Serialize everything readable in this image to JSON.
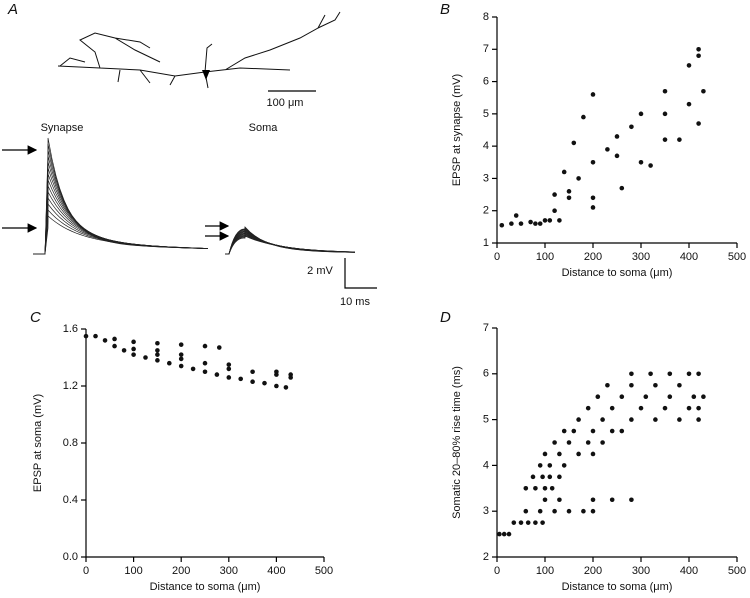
{
  "panel_a": {
    "label": "A",
    "scale_length": "100 μm",
    "synapse": "Synapse",
    "soma": "Soma",
    "v_scale": "2 mV",
    "t_scale": "10 ms"
  },
  "chart_data": [
    {
      "type": "scatter",
      "label": "B",
      "xlabel": "Distance to soma (μm)",
      "ylabel": "EPSP at synapse (mV)",
      "xlim": [
        0,
        500
      ],
      "xticks": [
        0,
        100,
        200,
        300,
        400,
        500
      ],
      "ylim": [
        1,
        8
      ],
      "yticks": [
        1,
        2,
        3,
        4,
        5,
        6,
        7,
        8
      ],
      "color": "#111111",
      "x": [
        10,
        30,
        50,
        70,
        90,
        100,
        120,
        140,
        160,
        180,
        200,
        120,
        150,
        200,
        250,
        300,
        350,
        400,
        420,
        110,
        200,
        300,
        350,
        400,
        430,
        130,
        200,
        260,
        320,
        380,
        420,
        150,
        250,
        350,
        420,
        40,
        80,
        170,
        230,
        280
      ],
      "values": [
        1.55,
        1.6,
        1.6,
        1.65,
        1.6,
        1.7,
        2.5,
        3.2,
        4.1,
        4.9,
        5.6,
        2.0,
        2.6,
        3.5,
        4.3,
        5.0,
        5.7,
        6.5,
        7.0,
        1.7,
        2.4,
        3.5,
        4.2,
        5.3,
        5.7,
        1.7,
        2.1,
        2.7,
        3.4,
        4.2,
        4.7,
        2.4,
        3.7,
        5.0,
        6.8,
        1.85,
        1.6,
        3.0,
        3.9,
        4.6
      ]
    },
    {
      "type": "scatter",
      "label": "C",
      "xlabel": "Distance to soma (μm)",
      "ylabel": "EPSP at soma (mV)",
      "xlim": [
        0,
        500
      ],
      "xticks": [
        0,
        100,
        200,
        300,
        400,
        500
      ],
      "ylim": [
        0,
        1.6
      ],
      "yticks": [
        {
          "value": 0,
          "label": "0.0"
        },
        {
          "value": 0.4,
          "label": "0.4"
        },
        {
          "value": 0.8,
          "label": "0.8"
        },
        {
          "value": 1.2,
          "label": "1.2"
        },
        {
          "value": 1.6,
          "label": "1.6"
        }
      ],
      "color": "#111111",
      "x": [
        0,
        20,
        40,
        60,
        80,
        100,
        150,
        200,
        250,
        300,
        350,
        400,
        420,
        60,
        100,
        150,
        200,
        250,
        280,
        100,
        150,
        200,
        250,
        300,
        350,
        400,
        430,
        150,
        200,
        300,
        400,
        430,
        125,
        175,
        225,
        275,
        325,
        375
      ],
      "values": [
        1.55,
        1.55,
        1.52,
        1.48,
        1.45,
        1.42,
        1.38,
        1.34,
        1.3,
        1.26,
        1.23,
        1.2,
        1.19,
        1.53,
        1.51,
        1.5,
        1.49,
        1.48,
        1.47,
        1.46,
        1.42,
        1.39,
        1.36,
        1.32,
        1.3,
        1.28,
        1.26,
        1.45,
        1.42,
        1.35,
        1.3,
        1.28,
        1.4,
        1.36,
        1.32,
        1.28,
        1.25,
        1.22
      ]
    },
    {
      "type": "scatter",
      "label": "D",
      "xlabel": "Distance to soma (μm)",
      "ylabel": "Somatic 20–80% rise time (ms)",
      "xlim": [
        0,
        500
      ],
      "xticks": [
        0,
        100,
        200,
        300,
        400,
        500
      ],
      "ylim": [
        2,
        7
      ],
      "yticks": [
        2,
        3,
        4,
        5,
        6,
        7
      ],
      "color": "#111111",
      "x": [
        5,
        15,
        25,
        35,
        50,
        65,
        80,
        95,
        60,
        90,
        120,
        150,
        180,
        200,
        100,
        130,
        200,
        240,
        280,
        60,
        80,
        100,
        115,
        75,
        95,
        110,
        130,
        90,
        110,
        140,
        100,
        130,
        170,
        200,
        120,
        150,
        190,
        220,
        140,
        160,
        200,
        240,
        260,
        170,
        220,
        280,
        330,
        380,
        420,
        190,
        240,
        300,
        350,
        400,
        420,
        210,
        260,
        310,
        360,
        410,
        430,
        230,
        280,
        330,
        380,
        280,
        320,
        360,
        400,
        420
      ],
      "values": [
        2.5,
        2.5,
        2.5,
        2.75,
        2.75,
        2.75,
        2.75,
        2.75,
        3,
        3,
        3,
        3,
        3,
        3,
        3.25,
        3.25,
        3.25,
        3.25,
        3.25,
        3.5,
        3.5,
        3.5,
        3.5,
        3.75,
        3.75,
        3.75,
        3.75,
        4,
        4,
        4,
        4.25,
        4.25,
        4.25,
        4.25,
        4.5,
        4.5,
        4.5,
        4.5,
        4.75,
        4.75,
        4.75,
        4.75,
        4.75,
        5,
        5,
        5,
        5,
        5,
        5,
        5.25,
        5.25,
        5.25,
        5.25,
        5.25,
        5.25,
        5.5,
        5.5,
        5.5,
        5.5,
        5.5,
        5.5,
        5.75,
        5.75,
        5.75,
        5.75,
        6,
        6,
        6,
        6,
        6
      ]
    }
  ]
}
